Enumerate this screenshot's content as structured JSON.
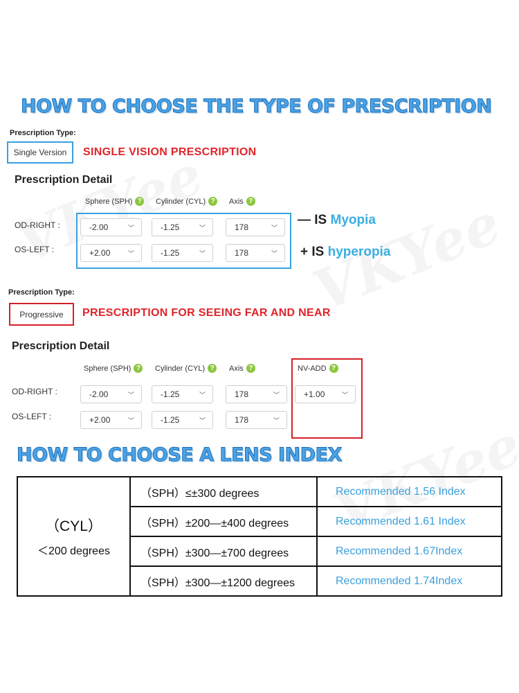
{
  "title_prescription": "HOW TO CHOOSE THE TYPE OF PRESCRIPTION",
  "title_lens_index": "HOW TO CHOOSE A LENS INDEX",
  "watermark": "VKYee",
  "single": {
    "type_label": "Prescription Type:",
    "type_value": "Single Version",
    "description": "SINGLE VISION PRESCRIPTION",
    "detail_title": "Prescription Detail",
    "headers": {
      "sphere": "Sphere (SPH)",
      "cylinder": "Cylinder (CYL)",
      "axis": "Axis"
    },
    "rows": [
      {
        "label": "OD-RIGHT :",
        "sph": "-2.00",
        "cyl": "-1.25",
        "axis": "178"
      },
      {
        "label": "OS-LEFT :",
        "sph": "+2.00",
        "cyl": "-1.25",
        "axis": "178"
      }
    ],
    "notes": [
      {
        "prefix": "— IS",
        "word": "Myopia"
      },
      {
        "prefix": "+ IS",
        "word": "hyperopia"
      }
    ]
  },
  "progressive": {
    "type_label": "Prescription Type:",
    "type_value": "Progressive",
    "description": "PRESCRIPTION FOR SEEING FAR AND NEAR",
    "detail_title": "Prescription Detail",
    "headers": {
      "sphere": "Sphere (SPH)",
      "cylinder": "Cylinder (CYL)",
      "axis": "Axis",
      "add": "NV-ADD"
    },
    "rows": [
      {
        "label": "OD-RIGHT :",
        "sph": "-2.00",
        "cyl": "-1.25",
        "axis": "178",
        "add": "+1.00"
      },
      {
        "label": "OS-LEFT :",
        "sph": "+2.00",
        "cyl": "-1.25",
        "axis": "178"
      }
    ]
  },
  "lens_table": {
    "cyl_label": "（CYL）",
    "cyl_range": "＜200 degrees",
    "rows": [
      {
        "sph": "（SPH）≤±300 degrees",
        "rec": "Recommended 1.56 Index"
      },
      {
        "sph": "（SPH）±200—±400 degrees",
        "rec": "Recommended 1.61 Index"
      },
      {
        "sph": "（SPH）±300—±700 degrees",
        "rec": "Recommended 1.67Index"
      },
      {
        "sph": "（SPH）±300—±1200 degrees",
        "rec": "Recommended 1.74Index"
      }
    ]
  },
  "colors": {
    "title_blue": "#4aa3e6",
    "red": "#e0242a",
    "highlight_blue": "#3aa0e0",
    "rec_blue": "#3aa0dc",
    "help_green": "#8cc63f"
  },
  "icons": {
    "help": "question-circle-icon",
    "dropdown": "chevron-down-icon"
  }
}
